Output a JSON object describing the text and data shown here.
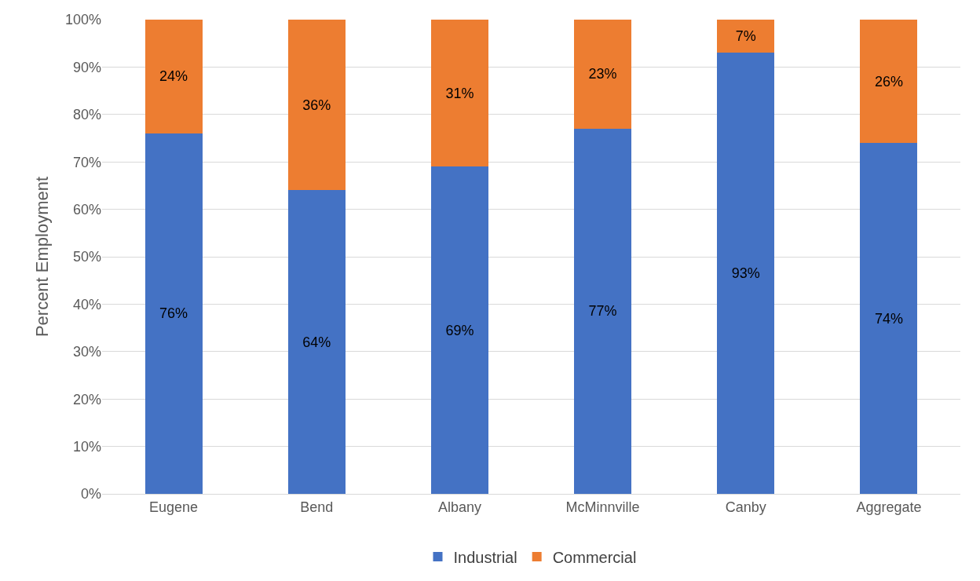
{
  "chart_data": {
    "type": "bar",
    "stacked": true,
    "ylabel": "Percent Employment",
    "categories": [
      "Eugene",
      "Bend",
      "Albany",
      "McMinnville",
      "Canby",
      "Aggregate"
    ],
    "series": [
      {
        "name": "Industrial",
        "color": "#4472c4",
        "values": [
          76,
          64,
          69,
          77,
          93,
          74
        ],
        "value_labels": [
          "76%",
          "64%",
          "69%",
          "77%",
          "93%",
          "74%"
        ]
      },
      {
        "name": "Commercial",
        "color": "#ed7d31",
        "values": [
          24,
          36,
          31,
          23,
          7,
          26
        ],
        "value_labels": [
          "24%",
          "36%",
          "31%",
          "23%",
          "7%",
          "26%"
        ]
      }
    ],
    "ylim": [
      0,
      100
    ],
    "yticks": [
      {
        "value": 0,
        "label": "0%"
      },
      {
        "value": 10,
        "label": "10%"
      },
      {
        "value": 20,
        "label": "20%"
      },
      {
        "value": 30,
        "label": "30%"
      },
      {
        "value": 40,
        "label": "40%"
      },
      {
        "value": 50,
        "label": "50%"
      },
      {
        "value": 60,
        "label": "60%"
      },
      {
        "value": 70,
        "label": "70%"
      },
      {
        "value": 80,
        "label": "80%"
      },
      {
        "value": 90,
        "label": "90%"
      },
      {
        "value": 100,
        "label": "100%"
      }
    ],
    "grid": "y",
    "legend": "bottom"
  }
}
